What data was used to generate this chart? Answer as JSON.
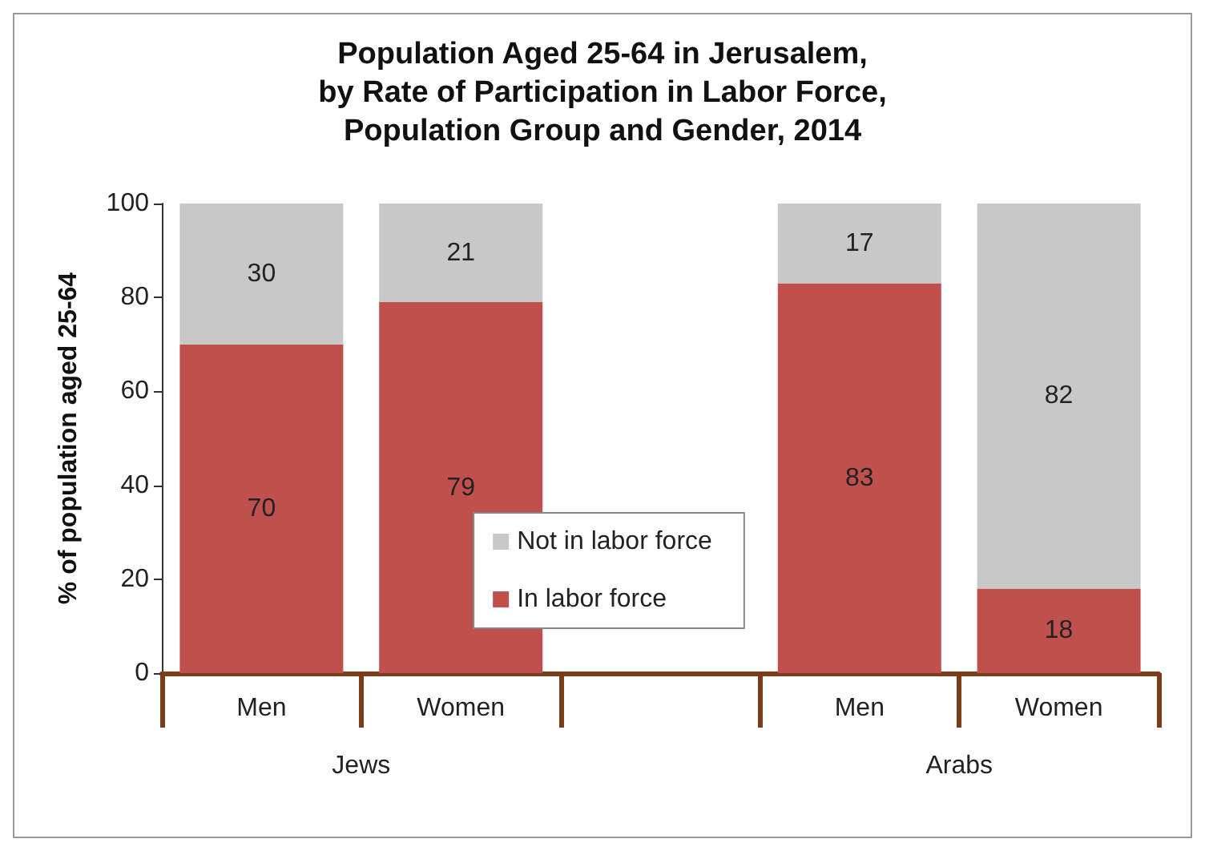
{
  "chart_data": {
    "type": "bar",
    "title": "Population Aged 25-64 in Jerusalem,\nby Rate of Participation in Labor Force,\nPopulation Group and Gender, 2014",
    "ylabel": "% of population aged 25-64",
    "categories": [
      "Men",
      "Women",
      null,
      "Men",
      "Women"
    ],
    "annotations": [
      "Jews",
      "Arabs"
    ],
    "series": [
      {
        "name": "In labor force",
        "color": "#c0504d",
        "values": [
          70,
          79,
          null,
          83,
          18
        ]
      },
      {
        "name": "Not in labor force",
        "color": "#c8c8c8",
        "values": [
          30,
          21,
          null,
          17,
          82
        ]
      }
    ],
    "stacked": true,
    "ylim": [
      0,
      100
    ],
    "yticks": [
      0,
      20,
      40,
      60,
      80,
      100
    ],
    "grid": false,
    "legend": "bottom",
    "data_labels": true
  }
}
